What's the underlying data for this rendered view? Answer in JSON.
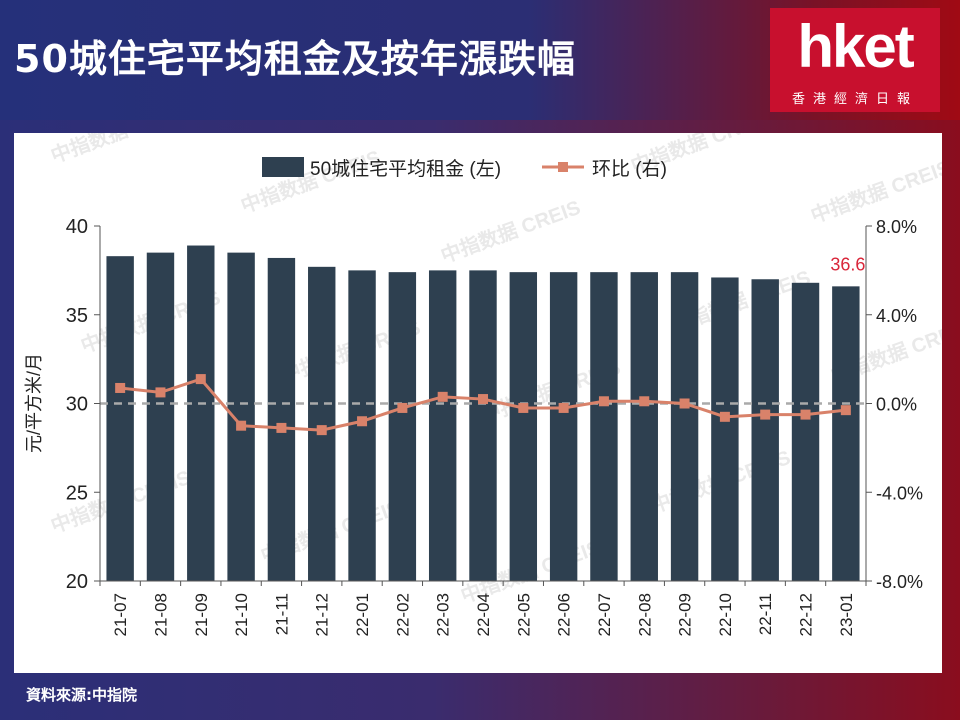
{
  "header": {
    "title": "50城住宅平均租金及按年漲跌幅"
  },
  "logo": {
    "main": "hket",
    "sub": "香港經濟日報"
  },
  "source": "資料來源:中指院",
  "watermark": "中指数据 CREIS",
  "colors": {
    "bar": "#2e4050",
    "line": "#d9826a",
    "highlight": "#d9263a",
    "zero_line": "#aaaaaa"
  },
  "chart_data": {
    "type": "bar",
    "categories": [
      "21-07",
      "21-08",
      "21-09",
      "21-10",
      "21-11",
      "21-12",
      "22-01",
      "22-02",
      "22-03",
      "22-04",
      "22-05",
      "22-06",
      "22-07",
      "22-08",
      "22-09",
      "22-10",
      "22-11",
      "22-12",
      "23-01"
    ],
    "series": [
      {
        "name": "50城住宅平均租金 (左)",
        "type": "bar",
        "axis": "left",
        "values": [
          38.3,
          38.5,
          38.9,
          38.5,
          38.2,
          37.7,
          37.5,
          37.4,
          37.5,
          37.5,
          37.4,
          37.4,
          37.4,
          37.4,
          37.4,
          37.1,
          37.0,
          36.8,
          36.6
        ]
      },
      {
        "name": "环比 (右)",
        "type": "line",
        "axis": "right",
        "values": [
          0.7,
          0.5,
          1.1,
          -1.0,
          -1.1,
          -1.2,
          -0.8,
          -0.2,
          0.3,
          0.2,
          -0.2,
          -0.2,
          0.1,
          0.1,
          0.0,
          -0.6,
          -0.5,
          -0.5,
          -0.3
        ]
      }
    ],
    "ylabel": "元/平方米/月",
    "ylim": [
      20,
      40
    ],
    "yticks": [
      "20",
      "25",
      "30",
      "35",
      "40"
    ],
    "y2lim": [
      -8,
      8
    ],
    "y2ticks": [
      "-8.0%",
      "-4.0%",
      "0.0%",
      "4.0%",
      "8.0%"
    ],
    "annotation": {
      "text": "36.6",
      "category": "23-01"
    },
    "legend": "top",
    "grid": false
  }
}
